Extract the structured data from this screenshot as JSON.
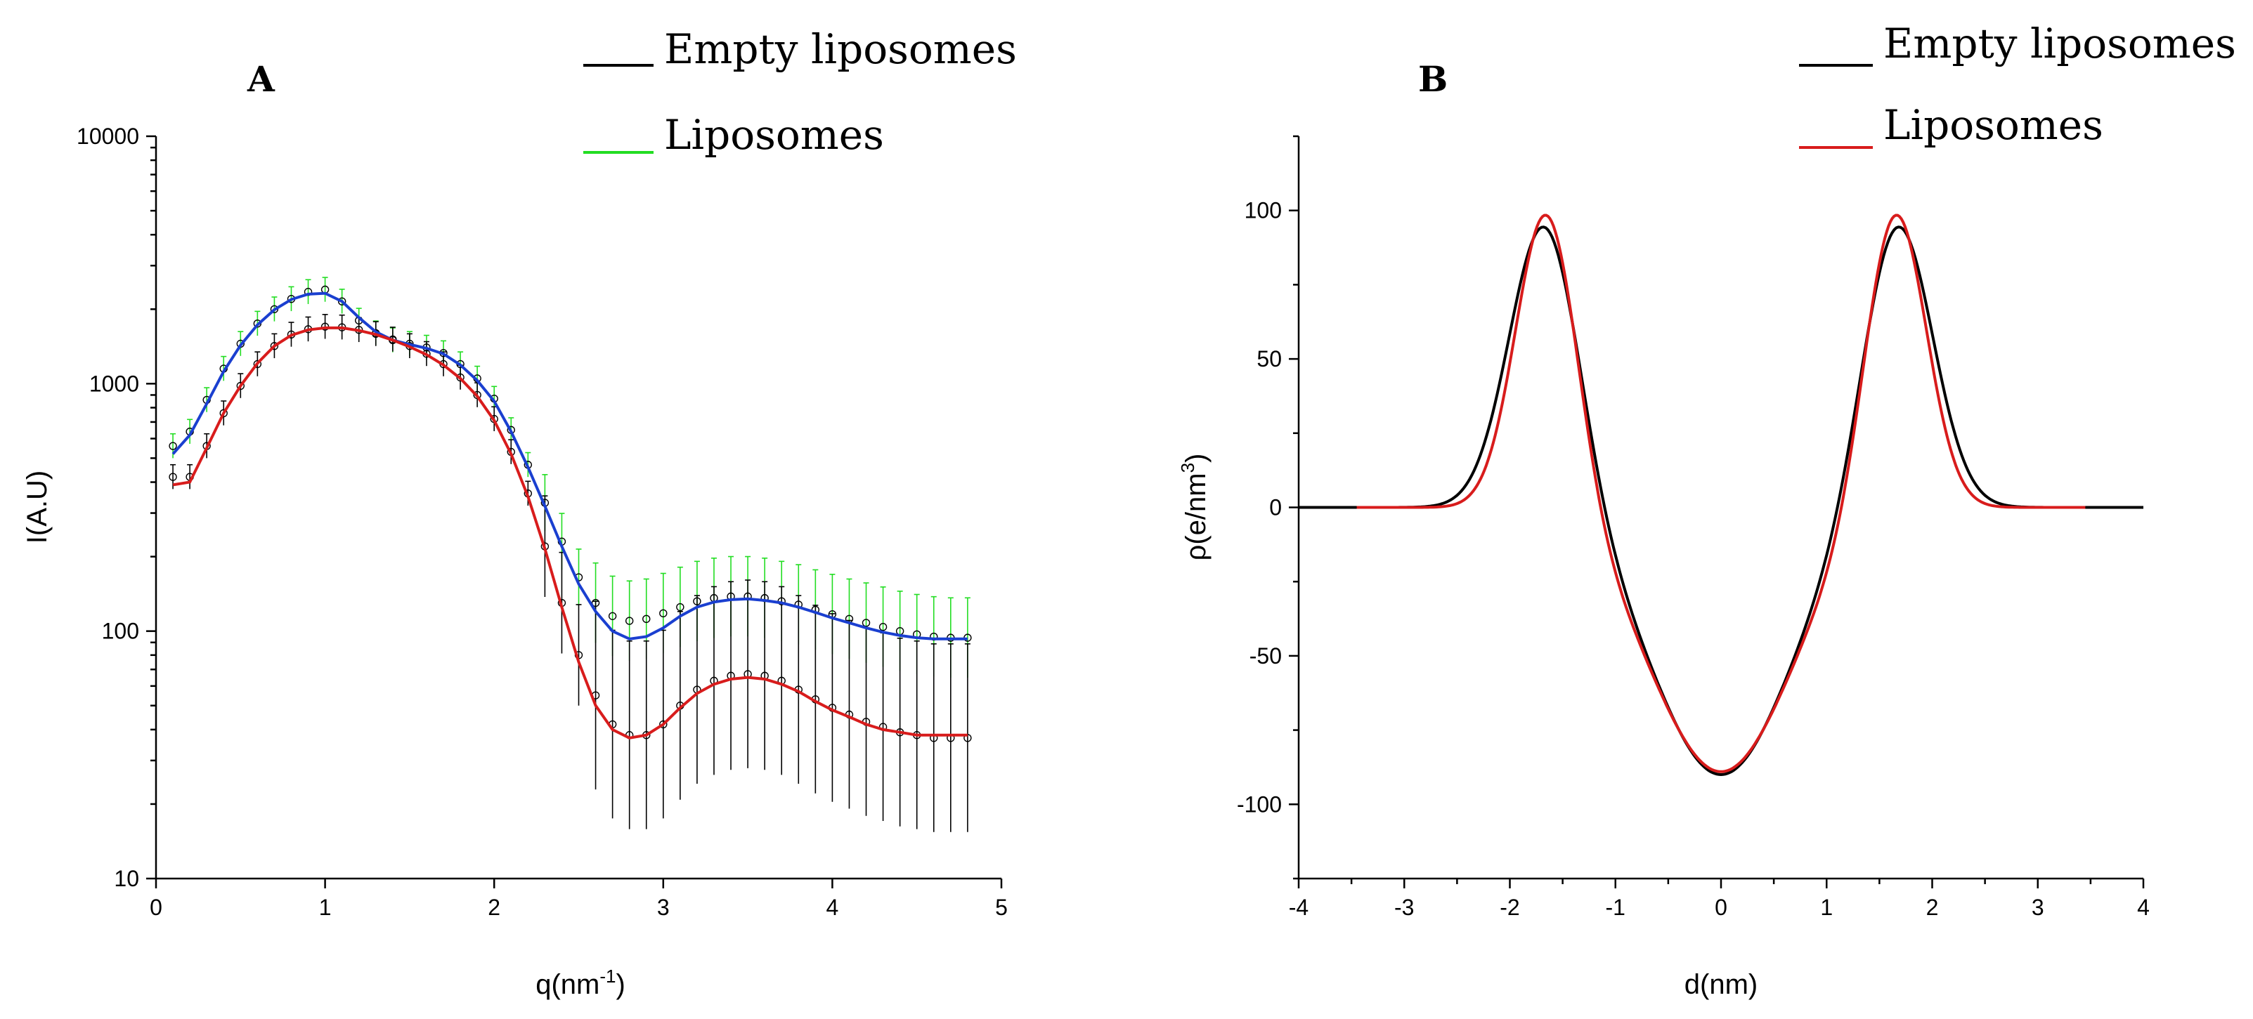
{
  "chart_data": [
    {
      "panel": "A",
      "type": "scatter",
      "xlabel": "q(nm",
      "xlabel_sup": "-1",
      "xlabel_suffix": ")",
      "ylabel": "I(A.U)",
      "xlim": [
        0,
        5
      ],
      "ylim": [
        10,
        10000
      ],
      "yscale": "log",
      "x_ticks": [
        0,
        1,
        2,
        3,
        4,
        5
      ],
      "x_tick_labels": [
        "0",
        "1",
        "2",
        "3",
        "4",
        "5"
      ],
      "y_ticks": [
        10,
        100,
        1000,
        10000
      ],
      "y_tick_labels": [
        "10",
        "100",
        "1000",
        "10000"
      ],
      "legend_position": "top-right",
      "legend": [
        {
          "name": "Empty liposomes",
          "color": "#000000"
        },
        {
          "name": "Liposomes",
          "color": "#22dd22"
        }
      ],
      "series": [
        {
          "name": "Liposomes data",
          "kind": "points",
          "color": "#22dd22",
          "x": [
            0.1,
            0.2,
            0.3,
            0.4,
            0.5,
            0.6,
            0.7,
            0.8,
            0.9,
            1.0,
            1.1,
            1.2,
            1.3,
            1.4,
            1.5,
            1.6,
            1.7,
            1.8,
            1.9,
            2.0,
            2.1,
            2.2,
            2.3,
            2.4,
            2.5,
            2.6,
            2.7,
            2.8,
            2.9,
            3.0,
            3.1,
            3.2,
            3.3,
            3.4,
            3.5,
            3.6,
            3.7,
            3.8,
            3.9,
            4.0,
            4.1,
            4.2,
            4.3,
            4.4,
            4.5,
            4.6,
            4.7,
            4.8
          ],
          "y": [
            560,
            640,
            860,
            1150,
            1450,
            1750,
            2000,
            2200,
            2350,
            2400,
            2150,
            1800,
            1600,
            1500,
            1450,
            1400,
            1330,
            1200,
            1050,
            870,
            650,
            470,
            330,
            230,
            165,
            130,
            115,
            110,
            112,
            118,
            125,
            132,
            136,
            138,
            138,
            136,
            132,
            128,
            122,
            117,
            112,
            108,
            104,
            100,
            97,
            95,
            94,
            94
          ]
        },
        {
          "name": "Empty liposomes data",
          "kind": "points",
          "color": "#000000",
          "x": [
            0.1,
            0.2,
            0.3,
            0.4,
            0.5,
            0.6,
            0.7,
            0.8,
            0.9,
            1.0,
            1.1,
            1.2,
            1.3,
            1.4,
            1.5,
            1.6,
            1.7,
            1.8,
            1.9,
            2.0,
            2.1,
            2.2,
            2.3,
            2.4,
            2.5,
            2.6,
            2.7,
            2.8,
            2.9,
            3.0,
            3.1,
            3.2,
            3.3,
            3.4,
            3.5,
            3.6,
            3.7,
            3.8,
            3.9,
            4.0,
            4.1,
            4.2,
            4.3,
            4.4,
            4.5,
            4.6,
            4.7,
            4.8
          ],
          "y": [
            420,
            420,
            560,
            760,
            980,
            1200,
            1420,
            1580,
            1660,
            1700,
            1690,
            1650,
            1590,
            1510,
            1420,
            1320,
            1200,
            1060,
            900,
            720,
            530,
            360,
            220,
            130,
            80,
            55,
            42,
            38,
            38,
            42,
            50,
            58,
            63,
            66,
            67,
            66,
            63,
            58,
            53,
            49,
            46,
            43,
            41,
            39,
            38,
            37,
            37,
            37
          ]
        },
        {
          "name": "Liposomes fit",
          "kind": "line",
          "color": "#1a3fd0",
          "x": [
            0.1,
            0.2,
            0.3,
            0.4,
            0.5,
            0.6,
            0.7,
            0.8,
            0.9,
            1.0,
            1.1,
            1.2,
            1.3,
            1.4,
            1.5,
            1.6,
            1.7,
            1.8,
            1.9,
            2.0,
            2.1,
            2.2,
            2.3,
            2.4,
            2.5,
            2.6,
            2.7,
            2.8,
            2.9,
            3.0,
            3.1,
            3.2,
            3.3,
            3.4,
            3.5,
            3.6,
            3.7,
            3.8,
            3.9,
            4.0,
            4.1,
            4.2,
            4.3,
            4.4,
            4.5,
            4.6,
            4.7,
            4.8
          ],
          "y": [
            520,
            620,
            830,
            1120,
            1430,
            1730,
            1990,
            2190,
            2300,
            2320,
            2150,
            1850,
            1620,
            1500,
            1440,
            1390,
            1320,
            1190,
            1030,
            850,
            640,
            460,
            320,
            220,
            155,
            120,
            100,
            93,
            95,
            103,
            115,
            125,
            131,
            134,
            135,
            133,
            130,
            125,
            119,
            113,
            108,
            103,
            99,
            96,
            94,
            93,
            93,
            93
          ]
        },
        {
          "name": "Empty liposomes fit",
          "kind": "line",
          "color": "#d81c1c",
          "x": [
            0.1,
            0.2,
            0.3,
            0.4,
            0.5,
            0.6,
            0.7,
            0.8,
            0.9,
            1.0,
            1.1,
            1.2,
            1.3,
            1.4,
            1.5,
            1.6,
            1.7,
            1.8,
            1.9,
            2.0,
            2.1,
            2.2,
            2.3,
            2.4,
            2.5,
            2.6,
            2.7,
            2.8,
            2.9,
            3.0,
            3.1,
            3.2,
            3.3,
            3.4,
            3.5,
            3.6,
            3.7,
            3.8,
            3.9,
            4.0,
            4.1,
            4.2,
            4.3,
            4.4,
            4.5,
            4.6,
            4.7,
            4.8
          ],
          "y": [
            390,
            400,
            550,
            760,
            980,
            1210,
            1420,
            1570,
            1650,
            1680,
            1680,
            1640,
            1580,
            1500,
            1410,
            1310,
            1190,
            1050,
            890,
            710,
            520,
            350,
            215,
            125,
            75,
            50,
            40,
            37,
            38,
            42,
            49,
            56,
            61,
            64,
            65,
            64,
            61,
            57,
            52,
            48,
            45,
            42,
            40,
            39,
            38,
            38,
            38,
            38
          ]
        }
      ]
    },
    {
      "panel": "B",
      "type": "line",
      "xlabel": "d(nm)",
      "ylabel": "ρ(e/nm",
      "ylabel_sup": "3",
      "ylabel_suffix": ")",
      "xlim": [
        -4,
        4
      ],
      "ylim": [
        -125,
        125
      ],
      "x_ticks": [
        -4,
        -3,
        -2,
        -1,
        0,
        1,
        2,
        3,
        4
      ],
      "x_tick_labels": [
        "-4",
        "-3",
        "-2",
        "-1",
        "0",
        "1",
        "2",
        "3",
        "4"
      ],
      "y_ticks": [
        -100,
        -50,
        0,
        50,
        100
      ],
      "y_tick_labels": [
        "-100",
        "-50",
        "0",
        "50",
        "100"
      ],
      "legend_position": "top-right",
      "legend": [
        {
          "name": "Empty liposomes",
          "color": "#000000"
        },
        {
          "name": "Liposomes",
          "color": "#d81c1c"
        }
      ],
      "series": [
        {
          "name": "Empty liposomes",
          "color": "#000000",
          "model": {
            "baseline": 0,
            "peak_height": 98,
            "peak_center": 1.67,
            "peak_sigma": 0.33,
            "center_depth": -90,
            "center_sigma": 0.66
          },
          "x_range": [
            -4,
            4
          ]
        },
        {
          "name": "Liposomes",
          "color": "#d81c1c",
          "model": {
            "baseline": 0,
            "peak_height": 103,
            "peak_center": 1.65,
            "peak_sigma": 0.29,
            "center_depth": -89,
            "center_sigma": 0.68
          },
          "x_range": [
            -3.45,
            3.45
          ]
        }
      ]
    }
  ]
}
